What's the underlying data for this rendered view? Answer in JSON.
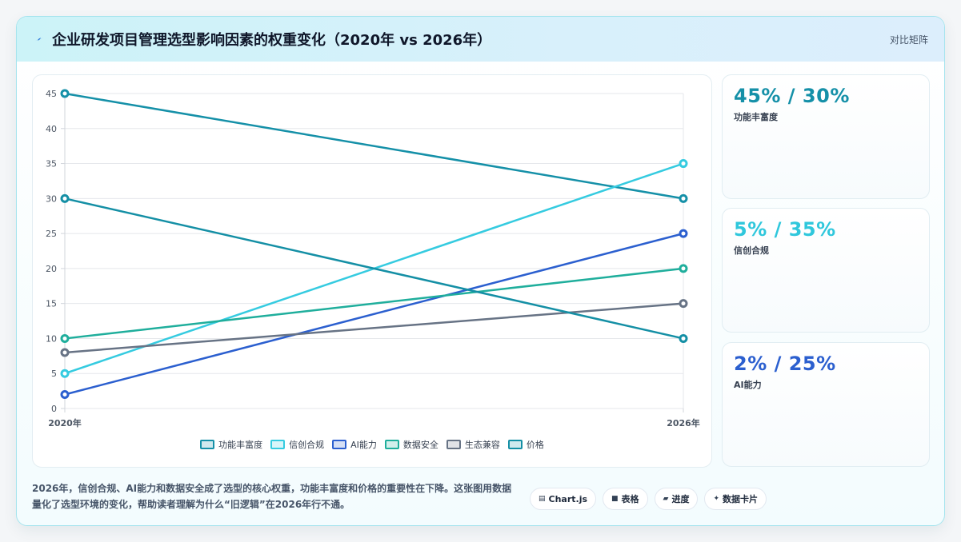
{
  "header": {
    "title": "企业研发项目管理选型影响因素的权重变化（2020年 vs 2026年）",
    "right_label": "对比矩阵",
    "icon": "bolt-icon"
  },
  "chart_data": {
    "type": "line",
    "categories": [
      "2020年",
      "2026年"
    ],
    "ylim": [
      0,
      45
    ],
    "yticks": [
      0,
      5,
      10,
      15,
      20,
      25,
      30,
      35,
      40,
      45
    ],
    "grid": true,
    "legend_placement": "bottom",
    "series": [
      {
        "name": "功能丰富度",
        "values": [
          45,
          30
        ],
        "color": "#1590a8"
      },
      {
        "name": "信创合规",
        "values": [
          5,
          35
        ],
        "color": "#35cbe0"
      },
      {
        "name": "AI能力",
        "values": [
          2,
          25
        ],
        "color": "#2b5fcf"
      },
      {
        "name": "数据安全",
        "values": [
          10,
          20
        ],
        "color": "#1fae9c"
      },
      {
        "name": "生态兼容",
        "values": [
          8,
          15
        ],
        "color": "#677385"
      },
      {
        "name": "价格",
        "values": [
          30,
          10
        ],
        "color": "#148fa5"
      }
    ]
  },
  "side_cards": [
    {
      "value": "45% / 30%",
      "label": "功能丰富度",
      "color": "#1590a8"
    },
    {
      "value": "5% / 35%",
      "label": "信创合规",
      "color": "#2fc7dc"
    },
    {
      "value": "2% / 25%",
      "label": "AI能力",
      "color": "#2b5fcf"
    }
  ],
  "footer": {
    "text": "2026年，信创合规、AI能力和数据安全成了选型的核心权重，功能丰富度和价格的重要性在下降。这张图用数据量化了选型环境的变化，帮助读者理解为什么“旧逻辑”在2026年行不通。",
    "buttons": [
      {
        "label": "Chart.js",
        "icon": "chart-icon"
      },
      {
        "label": "表格",
        "icon": "table-icon"
      },
      {
        "label": "进度",
        "icon": "progress-icon"
      },
      {
        "label": "数据卡片",
        "icon": "sparkle-icon"
      }
    ]
  }
}
